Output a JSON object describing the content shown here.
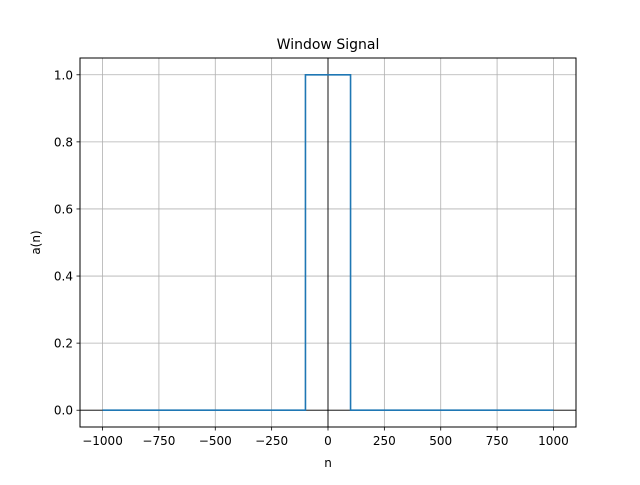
{
  "chart_data": {
    "type": "line",
    "title": "Window Signal",
    "xlabel": "n",
    "ylabel": "a(n)",
    "xlim": [
      -1100,
      1100
    ],
    "ylim": [
      -0.05,
      1.05
    ],
    "xticks": [
      -1000,
      -750,
      -500,
      -250,
      0,
      250,
      500,
      750,
      1000
    ],
    "xtick_labels": [
      "−1000",
      "−750",
      "−500",
      "−250",
      "0",
      "250",
      "500",
      "750",
      "1000"
    ],
    "yticks": [
      0.0,
      0.2,
      0.4,
      0.6,
      0.8,
      1.0
    ],
    "ytick_labels": [
      "0.0",
      "0.2",
      "0.4",
      "0.6",
      "0.8",
      "1.0"
    ],
    "grid": true,
    "reference_lines": {
      "x": 0,
      "y": 0,
      "color": "#000000"
    },
    "series": [
      {
        "color": "#1f77b4",
        "x": [
          -1000,
          -100,
          -100,
          100,
          100,
          1000
        ],
        "y": [
          0,
          0,
          1,
          1,
          0,
          0
        ]
      }
    ]
  }
}
